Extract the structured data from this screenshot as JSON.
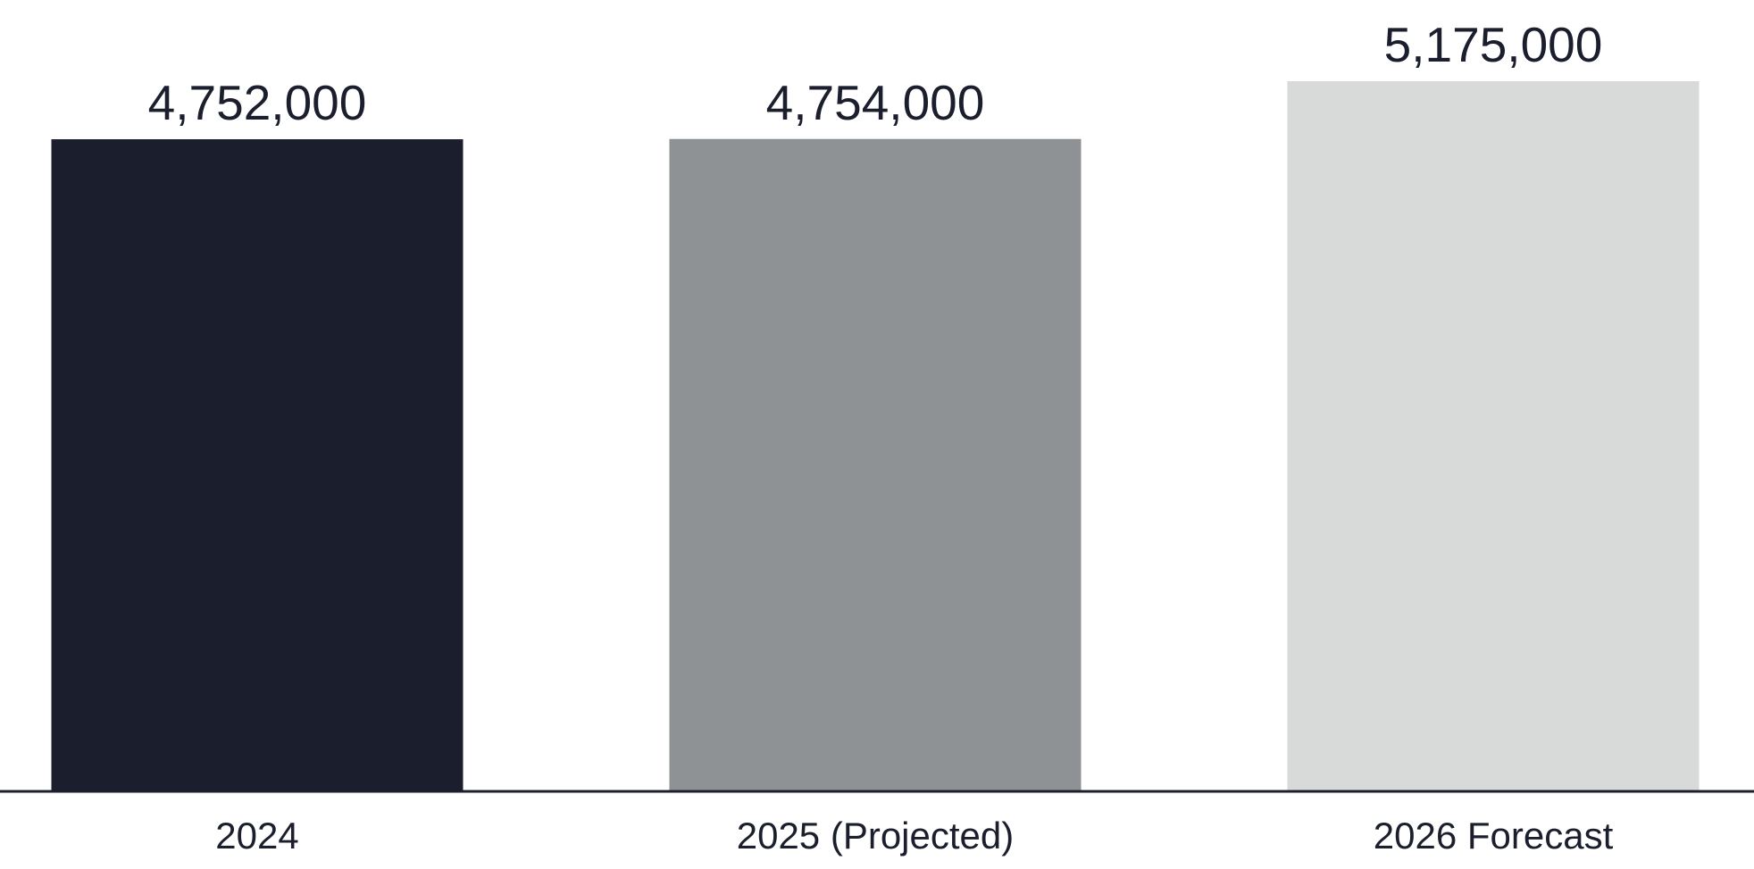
{
  "chart_data": {
    "type": "bar",
    "categories": [
      "2024",
      "2025 (Projected)",
      "2026 Forecast"
    ],
    "values": [
      4752000,
      4754000,
      5175000
    ],
    "value_labels": [
      "4,752,000",
      "4,754,000",
      "5,175,000"
    ],
    "colors": [
      "#1b1e2c",
      "#8e9295",
      "#d8d9d9"
    ],
    "axis_color": "#1b1e2c"
  }
}
